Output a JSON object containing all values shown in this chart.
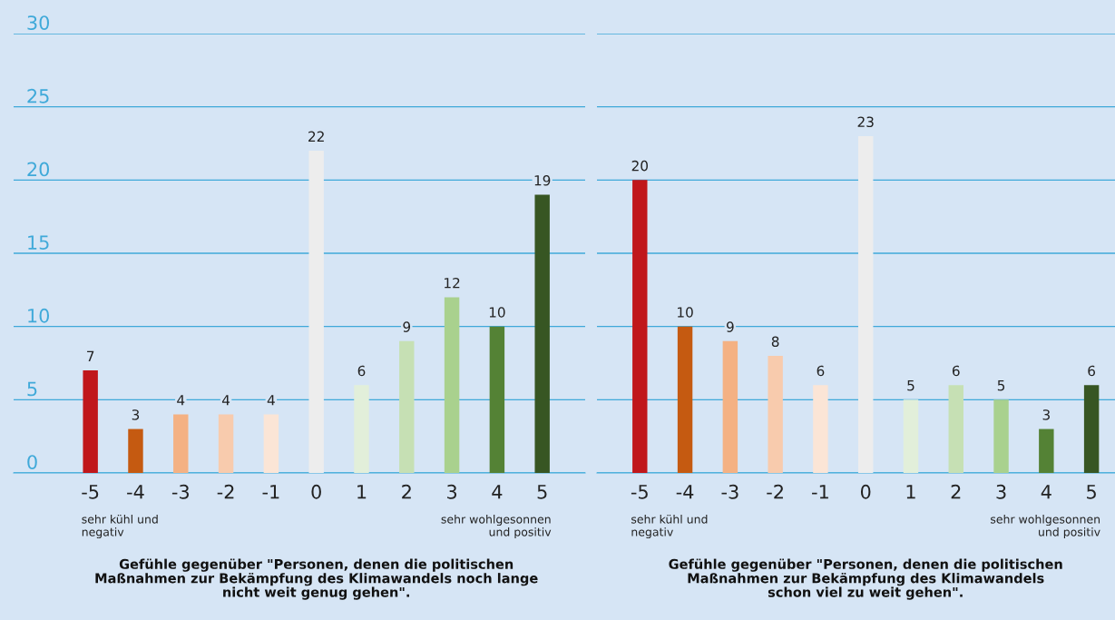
{
  "chart_data": [
    {
      "type": "bar",
      "categories": [
        "-5",
        "-4",
        "-3",
        "-2",
        "-1",
        "0",
        "1",
        "2",
        "3",
        "4",
        "5"
      ],
      "values": [
        7,
        3,
        4,
        4,
        4,
        22,
        6,
        9,
        12,
        10,
        19
      ],
      "colors": [
        "#c0171b",
        "#c55a11",
        "#f4b183",
        "#f8cbad",
        "#fbe5d6",
        "#ededed",
        "#e2efda",
        "#c6e0b4",
        "#a9d18e",
        "#548235",
        "#375623"
      ],
      "ylim": [
        0,
        30
      ],
      "yticks": [
        0,
        5,
        10,
        15,
        20,
        25,
        30
      ],
      "grid": "y",
      "data_labels": true,
      "xlabel": "Gefühle gegenüber \"Personen, denen die politischen\nMaßnahmen zur Bekämpfung des Klimawandels noch lange\nnicht weit genug gehen\".",
      "annotations": [
        "sehr kühl und\nnegativ",
        "sehr wohlgesonnen\nund positiv"
      ]
    },
    {
      "type": "bar",
      "categories": [
        "-5",
        "-4",
        "-3",
        "-2",
        "-1",
        "0",
        "1",
        "2",
        "3",
        "4",
        "5"
      ],
      "values": [
        20,
        10,
        9,
        8,
        6,
        23,
        5,
        6,
        5,
        3,
        6
      ],
      "colors": [
        "#c0171b",
        "#c55a11",
        "#f4b183",
        "#f8cbad",
        "#fbe5d6",
        "#ededed",
        "#e2efda",
        "#c6e0b4",
        "#a9d18e",
        "#548235",
        "#375623"
      ],
      "ylim": [
        0,
        30
      ],
      "yticks": [
        0,
        5,
        10,
        15,
        20,
        25,
        30
      ],
      "grid": "y",
      "data_labels": true,
      "tick_labels": "x",
      "xlabel": "Gefühle gegenüber \"Personen, denen die politischen\nMaßnahmen zur Bekämpfung des Klimawandels\nschon viel zu weit gehen\".",
      "annotations": [
        "sehr kühl und\nnegativ",
        "sehr wohlgesonnen\nund positiv"
      ]
    }
  ]
}
